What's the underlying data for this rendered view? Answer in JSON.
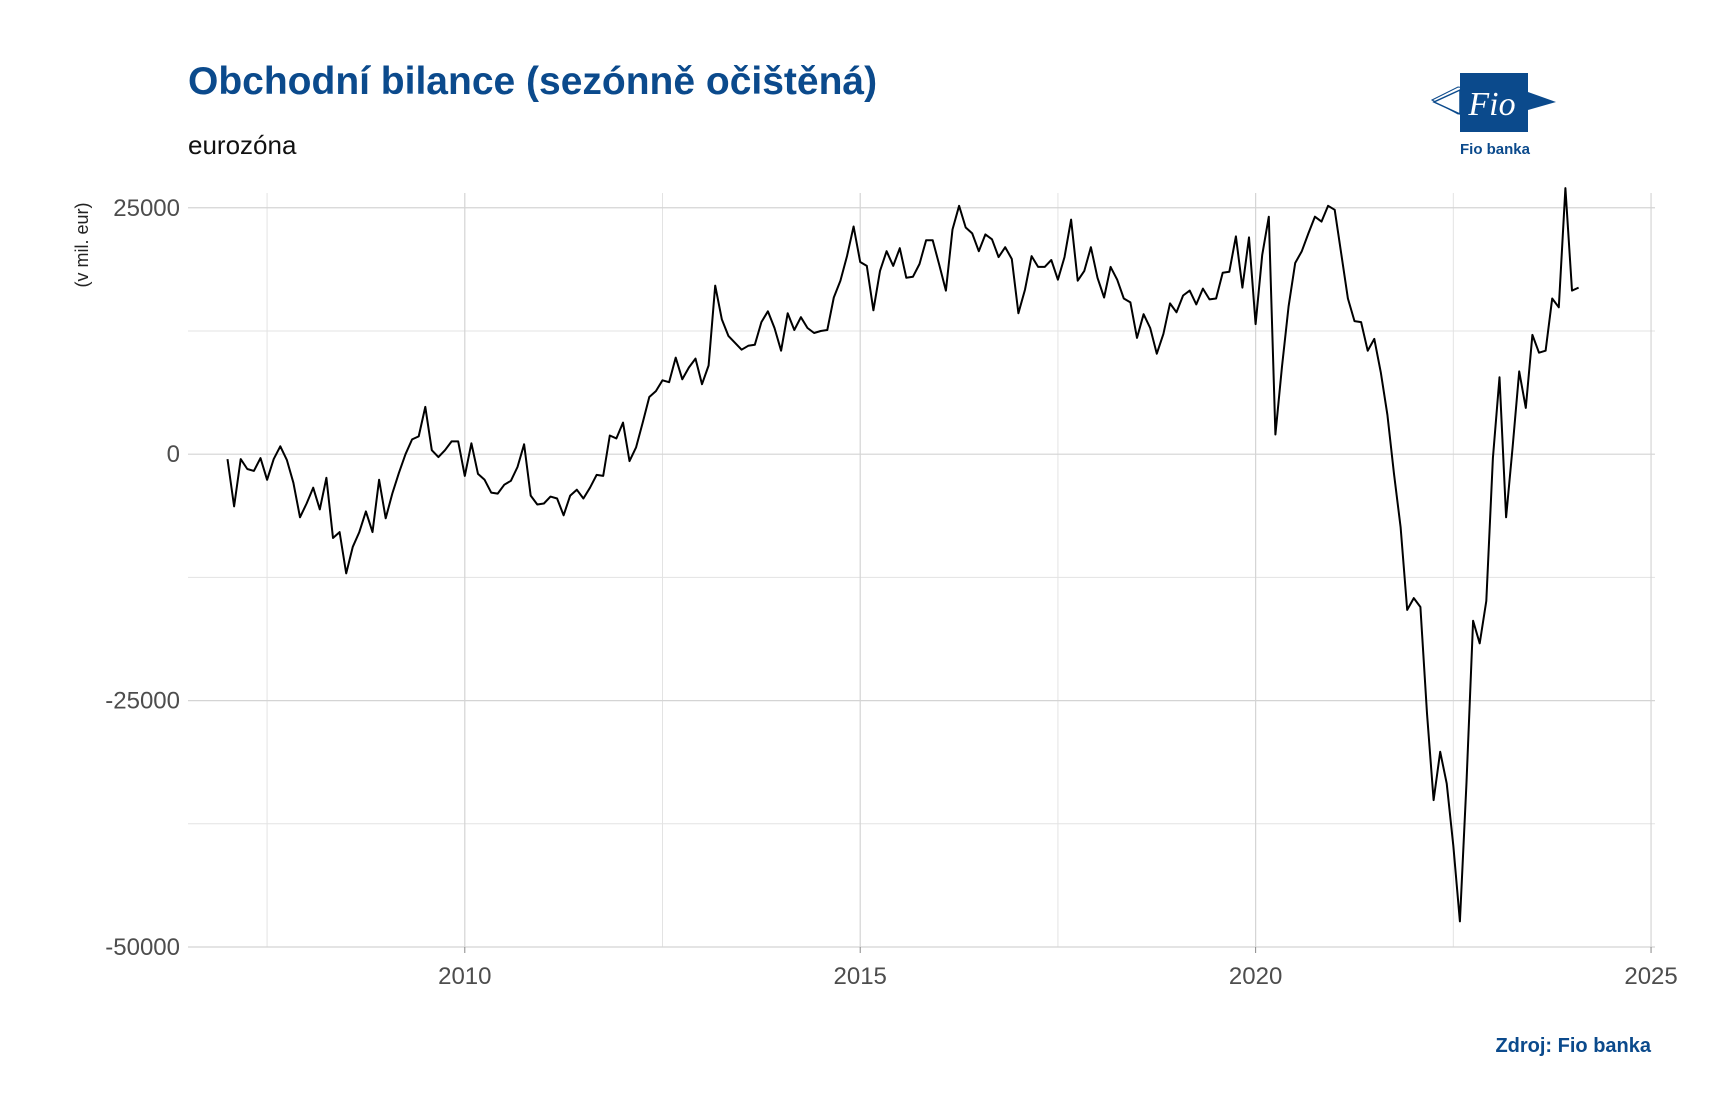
{
  "chart_data": {
    "type": "line",
    "title": "Obchodní bilance (sezónně očištěná)",
    "subtitle": "eurozóna",
    "ylabel": "(v mil. eur)",
    "xlabel": "",
    "source": "Zdroj: Fio banka",
    "x_range": [
      2006.5,
      2025.05
    ],
    "ylim": [
      -50000,
      26500
    ],
    "x_ticks": [
      2010,
      2015,
      2020,
      2025
    ],
    "x_tick_labels": [
      "2010",
      "2015",
      "2020",
      "2025"
    ],
    "y_ticks": [
      -50000,
      -25000,
      0,
      25000
    ],
    "y_tick_labels": [
      "-50000",
      "-25000",
      "0",
      "25000"
    ],
    "grid": true,
    "line_color": "#000000",
    "series": [
      {
        "start": "2007-01",
        "frequency": "monthly",
        "values": [
          -500,
          -5300,
          -500,
          -1500,
          -1700,
          -400,
          -2600,
          -500,
          800,
          -600,
          -2900,
          -6400,
          -5000,
          -3400,
          -5600,
          -2400,
          -8500,
          -7900,
          -12100,
          -9400,
          -7900,
          -5800,
          -7900,
          -2600,
          -6500,
          -4000,
          -1900,
          0,
          1500,
          1800,
          4800,
          400,
          -300,
          400,
          1300,
          1300,
          -2200,
          1100,
          -2000,
          -2600,
          -3900,
          -4000,
          -3100,
          -2700,
          -1300,
          1000,
          -4200,
          -5100,
          -5000,
          -4300,
          -4500,
          -6200,
          -4200,
          -3600,
          -4500,
          -3400,
          -2100,
          -2200,
          1900,
          1600,
          3200,
          -700,
          700,
          3200,
          5800,
          6400,
          7500,
          7300,
          9800,
          7600,
          8800,
          9700,
          7100,
          9000,
          17100,
          13700,
          12000,
          11300,
          10600,
          11000,
          11100,
          13400,
          14500,
          12800,
          10500,
          14300,
          12600,
          13900,
          12800,
          12300,
          12500,
          12600,
          15900,
          17600,
          20100,
          23100,
          19500,
          19100,
          14600,
          18600,
          20600,
          19100,
          20900,
          17900,
          18000,
          19300,
          21700,
          21700,
          19200,
          16600,
          22800,
          25200,
          23000,
          22400,
          20600,
          22300,
          21800,
          20000,
          21000,
          19800,
          14300,
          16700,
          20100,
          19000,
          19000,
          19700,
          17700,
          20000,
          23800,
          17600,
          18600,
          21000,
          17900,
          15900,
          19000,
          17700,
          15800,
          15400,
          11800,
          14200,
          12800,
          10200,
          12200,
          15300,
          14400,
          16100,
          16600,
          15200,
          16800,
          15700,
          15800,
          18400,
          18500,
          22100,
          16900,
          22000,
          13200,
          20200,
          24100,
          2000,
          8900,
          15000,
          19400,
          20600,
          22400,
          24100,
          23600,
          25200,
          24800,
          20300,
          15800,
          13500,
          13400,
          10500,
          11700,
          8300,
          4000,
          -2000,
          -7400,
          -15800,
          -14600,
          -15500,
          -26300,
          -35100,
          -30200,
          -33400,
          -39700,
          -47400,
          -33300,
          -16900,
          -19200,
          -14900,
          -400,
          7800,
          -6400,
          700,
          8400,
          4700,
          12100,
          10300,
          10500,
          15800,
          14900,
          27000,
          16600,
          16900
        ]
      }
    ]
  }
}
